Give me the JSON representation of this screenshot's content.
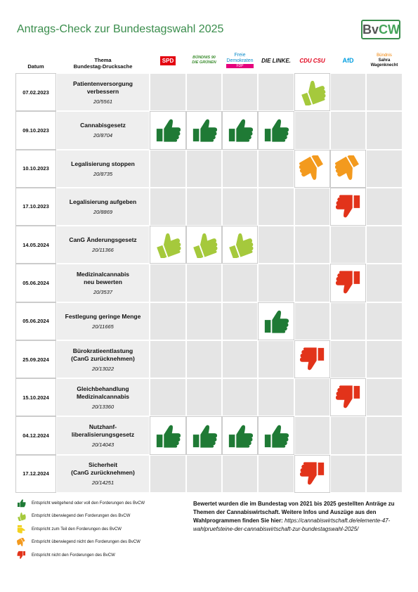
{
  "header": {
    "title": "Antrags-Check zur Bundestagswahl 2025",
    "logo": {
      "part1": "Bv",
      "part2": "CW"
    }
  },
  "table": {
    "col_date": "Datum",
    "col_topic": [
      "Thema",
      "Bundestag-Drucksache"
    ],
    "parties": [
      [
        "SPD"
      ],
      [
        "BÜNDNIS 90",
        "DIE GRÜNEN"
      ],
      [
        "Freie",
        "Demokraten",
        "FDP"
      ],
      [
        "DIE LINKE."
      ],
      [
        "CDU",
        "CSU"
      ],
      [
        "AfD"
      ],
      [
        "Bündnis",
        "Sahra",
        "Wagenknecht"
      ]
    ],
    "rows": [
      {
        "date": "07.02.2023",
        "topic": [
          "Patientenversorgung",
          "verbessern"
        ],
        "doc": "20/5561",
        "ratings": [
          null,
          null,
          null,
          null,
          1,
          null,
          null
        ]
      },
      {
        "date": "09.10.2023",
        "topic": [
          "Cannabisgesetz"
        ],
        "doc": "20/8704",
        "ratings": [
          0,
          0,
          0,
          0,
          null,
          null,
          null
        ]
      },
      {
        "date": "10.10.2023",
        "topic": [
          "Legalisierung stoppen"
        ],
        "doc": "20/8735",
        "ratings": [
          null,
          null,
          null,
          null,
          3,
          3,
          null
        ]
      },
      {
        "date": "17.10.2023",
        "topic": [
          "Legalisierung aufgeben"
        ],
        "doc": "20/8869",
        "ratings": [
          null,
          null,
          null,
          null,
          null,
          4,
          null
        ]
      },
      {
        "date": "14.05.2024",
        "topic": [
          "CanG Änderungsgesetz"
        ],
        "doc": "20/11366",
        "ratings": [
          1,
          1,
          1,
          null,
          null,
          null,
          null
        ]
      },
      {
        "date": "05.06.2024",
        "topic": [
          "Medizinalcannabis",
          "neu bewerten"
        ],
        "doc": "20/3537",
        "ratings": [
          null,
          null,
          null,
          null,
          null,
          4,
          null
        ]
      },
      {
        "date": "05.06.2024",
        "topic": [
          "Festlegung geringe Menge"
        ],
        "doc": "20/11665",
        "ratings": [
          null,
          null,
          null,
          0,
          null,
          null,
          null
        ]
      },
      {
        "date": "25.09.2024",
        "topic": [
          "Bürokratieentlastung",
          "(CanG zurücknehmen)"
        ],
        "doc": "20/13022",
        "ratings": [
          null,
          null,
          null,
          null,
          4,
          null,
          null
        ]
      },
      {
        "date": "15.10.2024",
        "topic": [
          "Gleichbehandlung",
          "Medizinalcannabis"
        ],
        "doc": "20/13360",
        "ratings": [
          null,
          null,
          null,
          null,
          null,
          4,
          null
        ]
      },
      {
        "date": "04.12.2024",
        "topic": [
          "Nutzhanf-",
          "liberalisierungsgesetz"
        ],
        "doc": "20/14043",
        "ratings": [
          0,
          0,
          0,
          0,
          null,
          null,
          null
        ]
      },
      {
        "date": "17.12.2024",
        "topic": [
          "Sicherheit",
          "(CanG zurücknehmen)"
        ],
        "doc": "20/14251",
        "ratings": [
          null,
          null,
          null,
          null,
          4,
          null,
          null
        ]
      }
    ]
  },
  "legend": [
    {
      "text": "Entspricht weitgehend oder voll den Forderungen des BvCW",
      "color": "#1f7a35"
    },
    {
      "text": "Entspricht überwiegend den Forderungen des BvCW",
      "color": "#a5c93c"
    },
    {
      "text": "Entspricht zum Teil den Forderungen des BvCW",
      "color": "#f3d21f"
    },
    {
      "text": "Entspricht überwiegend nicht den Forderungen des BvCW",
      "color": "#f39a1e"
    },
    {
      "text": "Entspricht nicht den Forderungen des BvCW",
      "color": "#e2331a"
    }
  ],
  "note": {
    "text": "Bewertet wurden die im Bundestag von 2021 bis 2025 gestellten Anträge zu Themen der Cannabiswirtschaft. Weitere Infos und Auszüge aus den Wahlprogrammen finden Sie hier: ",
    "url": "https://cannabiswirtschaft.de/elemente-47-wahlpruefsteine-der-cannabiswirtschaft-zur-bundestagswahl-2025/"
  }
}
